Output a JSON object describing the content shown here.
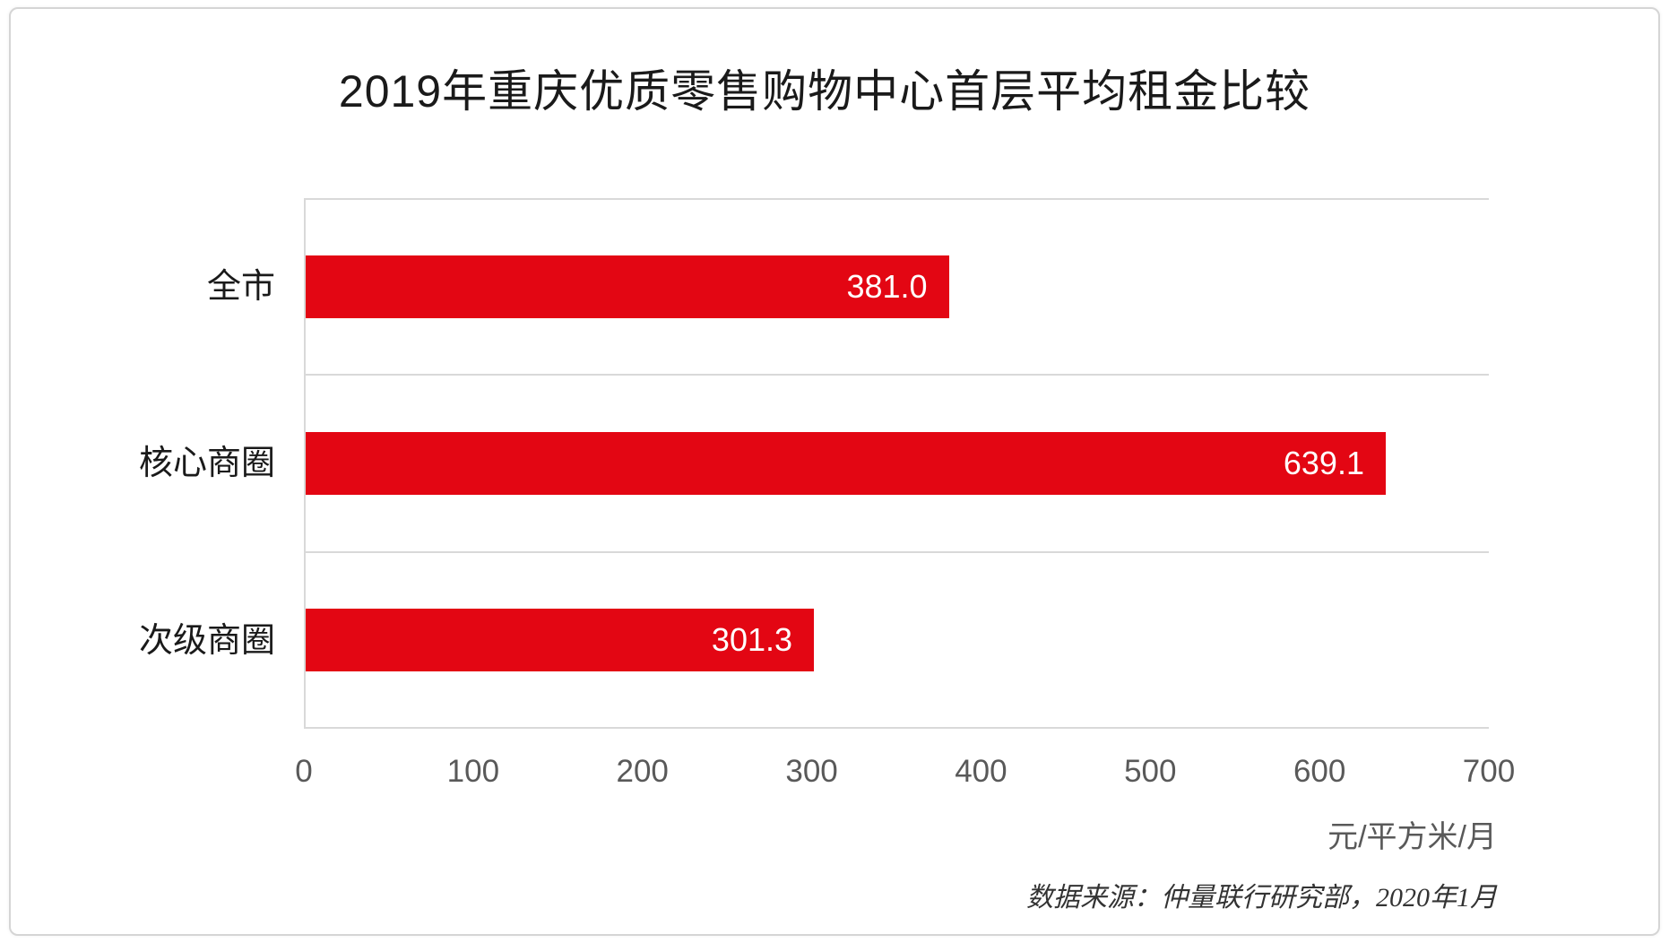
{
  "title": "2019年重庆优质零售购物中心首层平均租金比较",
  "chart_data": {
    "type": "bar",
    "orientation": "horizontal",
    "title": "2019年重庆优质零售购物中心首层平均租金比较",
    "categories": [
      "全市",
      "核心商圈",
      "次级商圈"
    ],
    "values": [
      381.0,
      639.1,
      301.3
    ],
    "value_labels": [
      "381.0",
      "639.1",
      "301.3"
    ],
    "xlabel": "元/平方米/月",
    "ylabel": "",
    "xlim": [
      0,
      700
    ],
    "x_ticks": [
      0,
      100,
      200,
      300,
      400,
      500,
      600,
      700
    ],
    "tick_labels": [
      "0",
      "100",
      "200",
      "300",
      "400",
      "500",
      "600",
      "700"
    ],
    "legend": "none",
    "grid": "horizontal band separator lines",
    "bar_color": "#e30613",
    "value_label_position": "inside-end"
  },
  "footer": {
    "unit_label": "元/平方米/月",
    "source": "数据来源：仲量联行研究部，2020年1月"
  },
  "colors": {
    "bar": "#e30613",
    "grid": "#d9d9d9",
    "tick_text": "#595959",
    "category_text": "#1a1a1a",
    "value_text": "#ffffff",
    "card_border": "#d5d5d5"
  }
}
